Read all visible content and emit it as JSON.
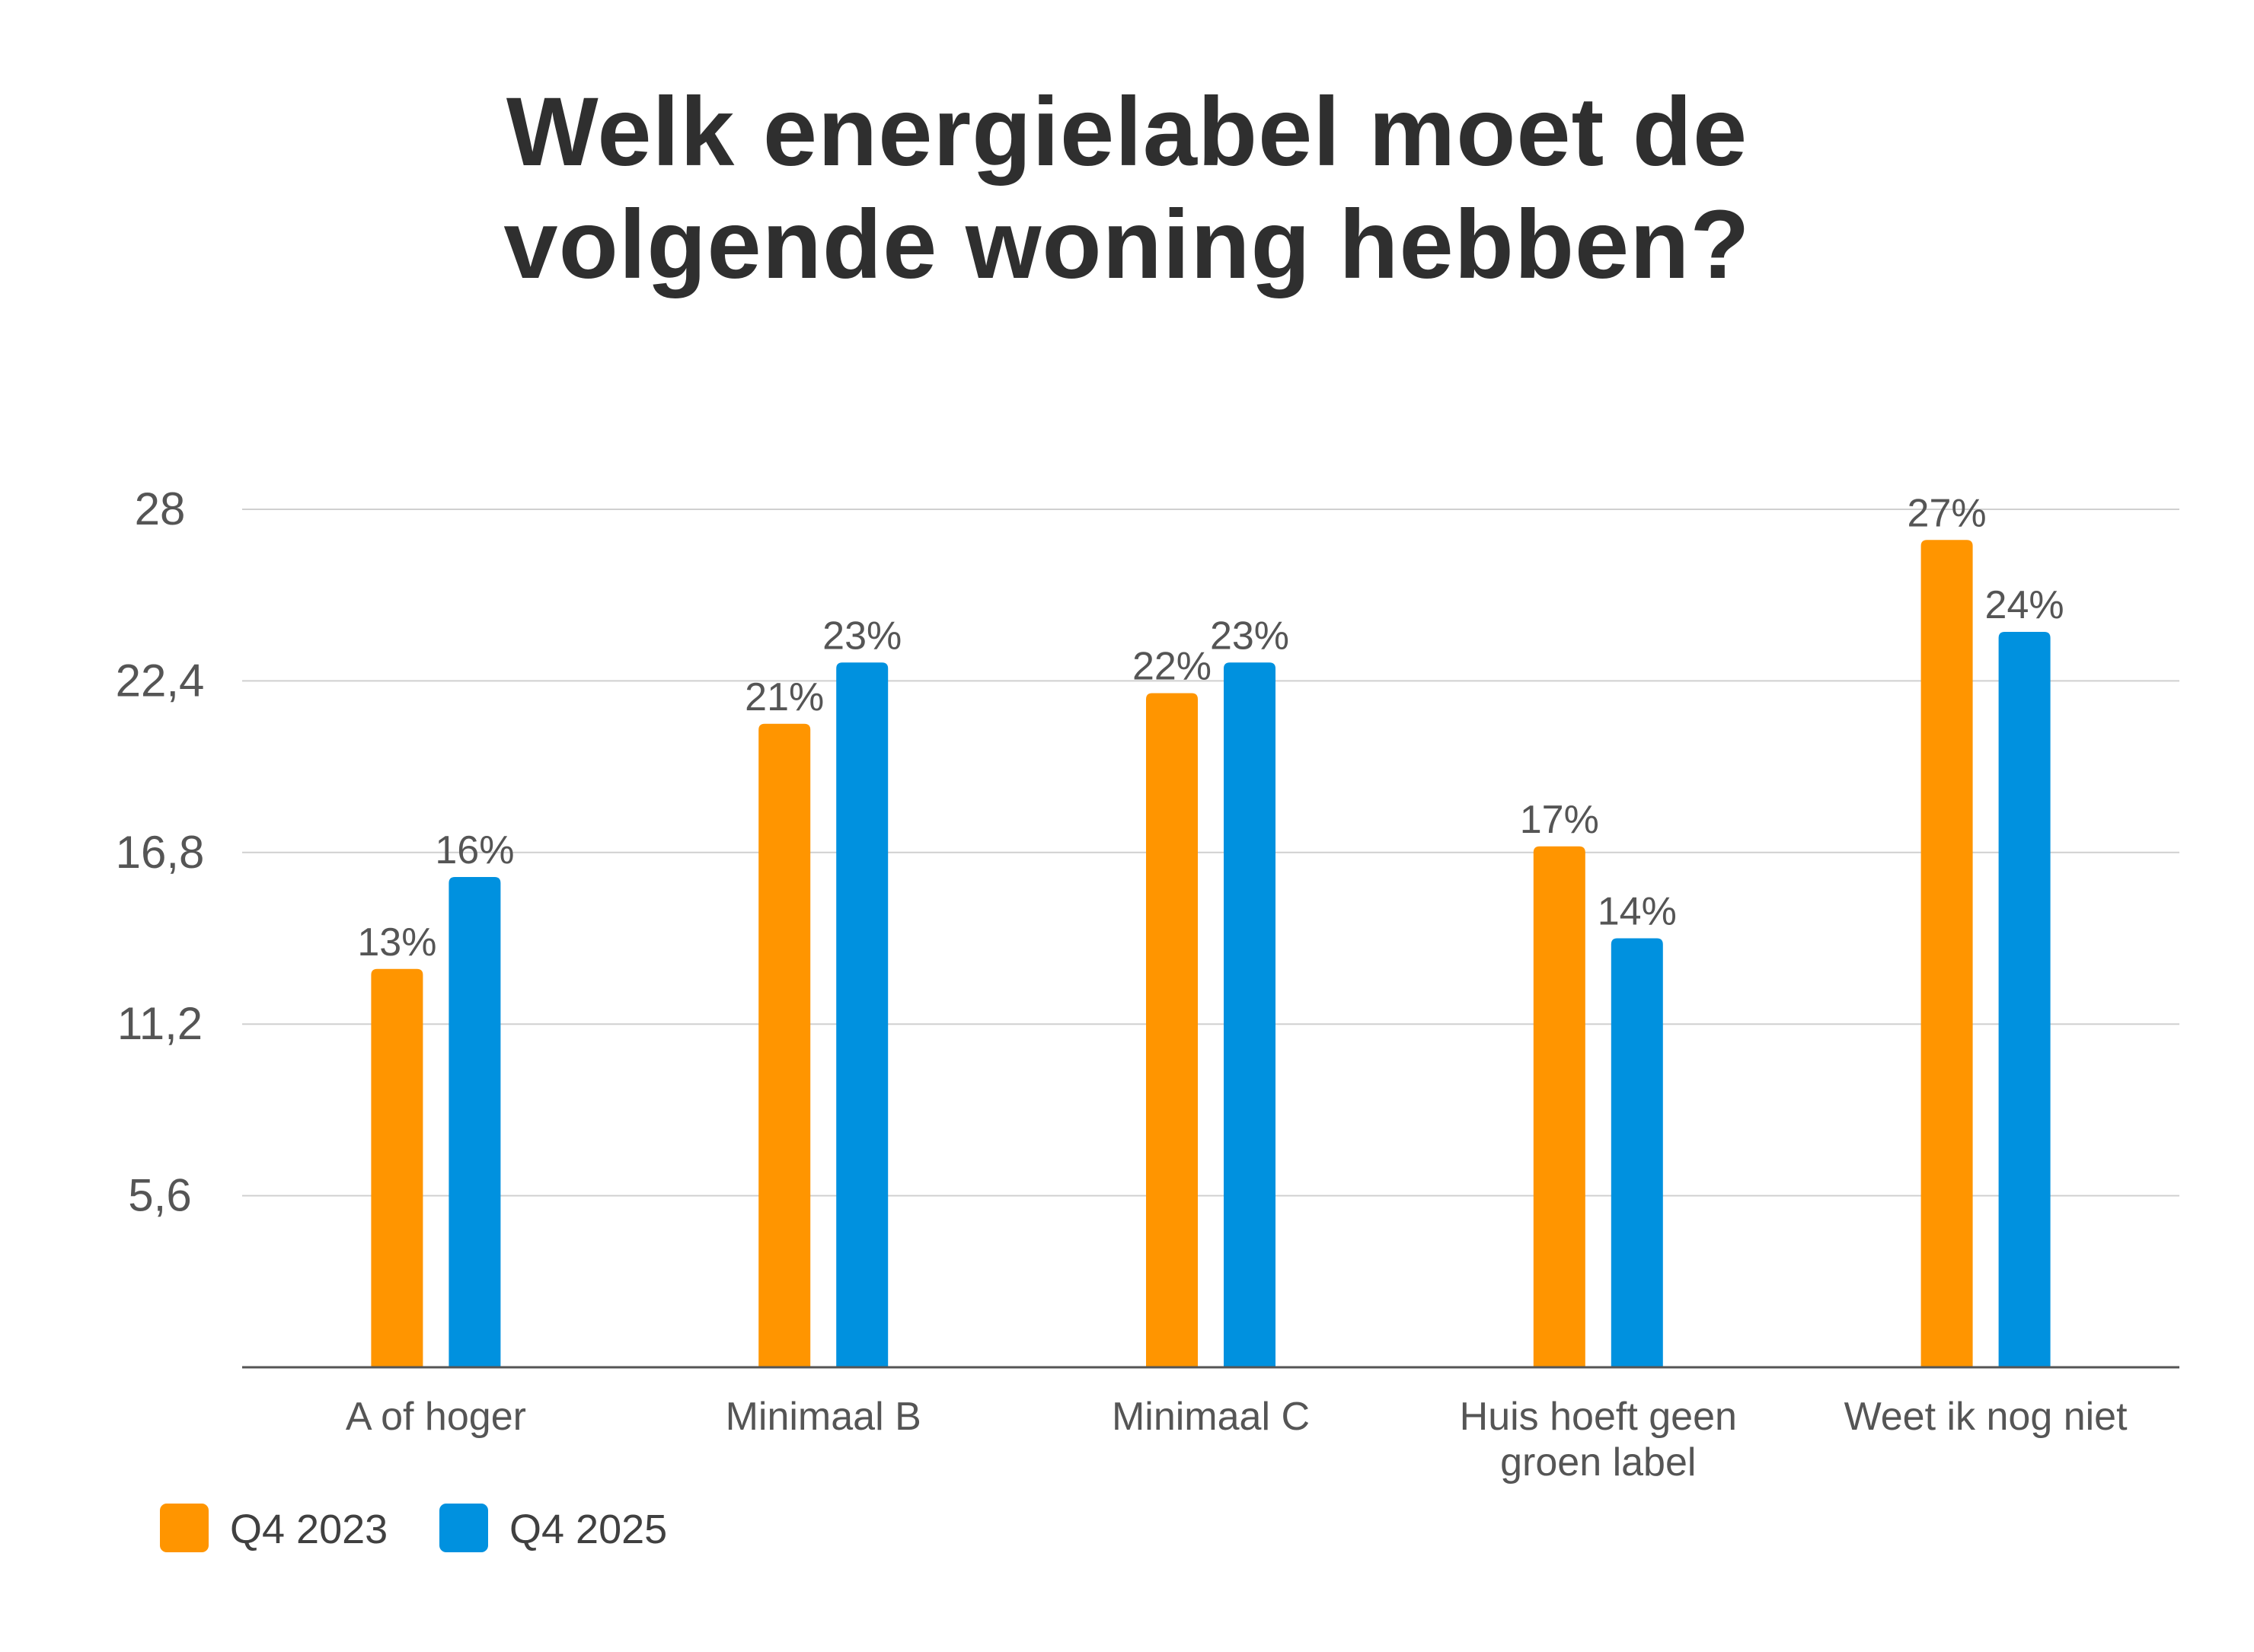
{
  "chart_data": {
    "type": "bar",
    "title": [
      "Welk energielabel moet de",
      "volgende woning hebben?"
    ],
    "categories": [
      [
        "A of hoger"
      ],
      [
        "Minimaal B"
      ],
      [
        "Minimaal C"
      ],
      [
        "Huis hoeft geen",
        "groen label"
      ],
      [
        "Weet ik nog niet"
      ]
    ],
    "series": [
      {
        "name": "Q4 2023",
        "color": "#ff9500",
        "values": [
          13,
          21,
          22,
          17,
          27
        ],
        "labels": [
          "13%",
          "21%",
          "22%",
          "17%",
          "27%"
        ]
      },
      {
        "name": "Q4 2025",
        "color": "#0091df",
        "values": [
          16,
          23,
          23,
          14,
          24
        ],
        "labels": [
          "16%",
          "23%",
          "23%",
          "14%",
          "24%"
        ]
      }
    ],
    "yticks": [
      5.6,
      11.2,
      16.8,
      22.4,
      28
    ],
    "ytick_labels": [
      "5,6",
      "11,2",
      "16,8",
      "22,4",
      "28"
    ],
    "ylim": [
      0,
      28
    ],
    "xlabel": "",
    "ylabel": "",
    "grid": true,
    "legend_position": "bottom-left",
    "colors": {
      "grid": "#d0d0d0",
      "axis": "#555555",
      "text": "#555555",
      "title": "#2f2f2f"
    }
  }
}
